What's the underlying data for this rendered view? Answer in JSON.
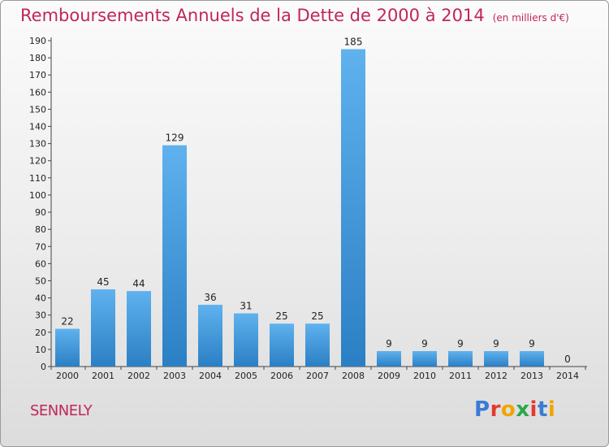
{
  "header": {
    "title": "Remboursements Annuels de la Dette de 2000 à 2014",
    "unit": "(en milliers d'€)"
  },
  "footer": {
    "commune": "SENNELY",
    "logo_text": "Proxiti",
    "logo_colors": [
      "#3a7bd5",
      "#e23b2e",
      "#f0a500",
      "#2aa84a",
      "#e23b2e",
      "#3a7bd5",
      "#f0a500"
    ]
  },
  "colors": {
    "title": "#c0265a",
    "bar_top": "#5fb2ee",
    "bar_bottom": "#2b7fc4"
  },
  "chart_data": {
    "type": "bar",
    "title": "Remboursements Annuels de la Dette de 2000 à 2014",
    "subtitle": "(en milliers d'€)",
    "xlabel": "",
    "ylabel": "",
    "categories": [
      "2000",
      "2001",
      "2002",
      "2003",
      "2004",
      "2005",
      "2006",
      "2007",
      "2008",
      "2009",
      "2010",
      "2011",
      "2012",
      "2013",
      "2014"
    ],
    "values": [
      22,
      45,
      44,
      129,
      36,
      31,
      25,
      25,
      185,
      9,
      9,
      9,
      9,
      9,
      0
    ],
    "ylim": [
      0,
      190
    ],
    "yticks": [
      0,
      10,
      20,
      30,
      40,
      50,
      60,
      70,
      80,
      90,
      100,
      110,
      120,
      130,
      140,
      150,
      160,
      170,
      180,
      190
    ],
    "grid": false,
    "legend": "none"
  }
}
